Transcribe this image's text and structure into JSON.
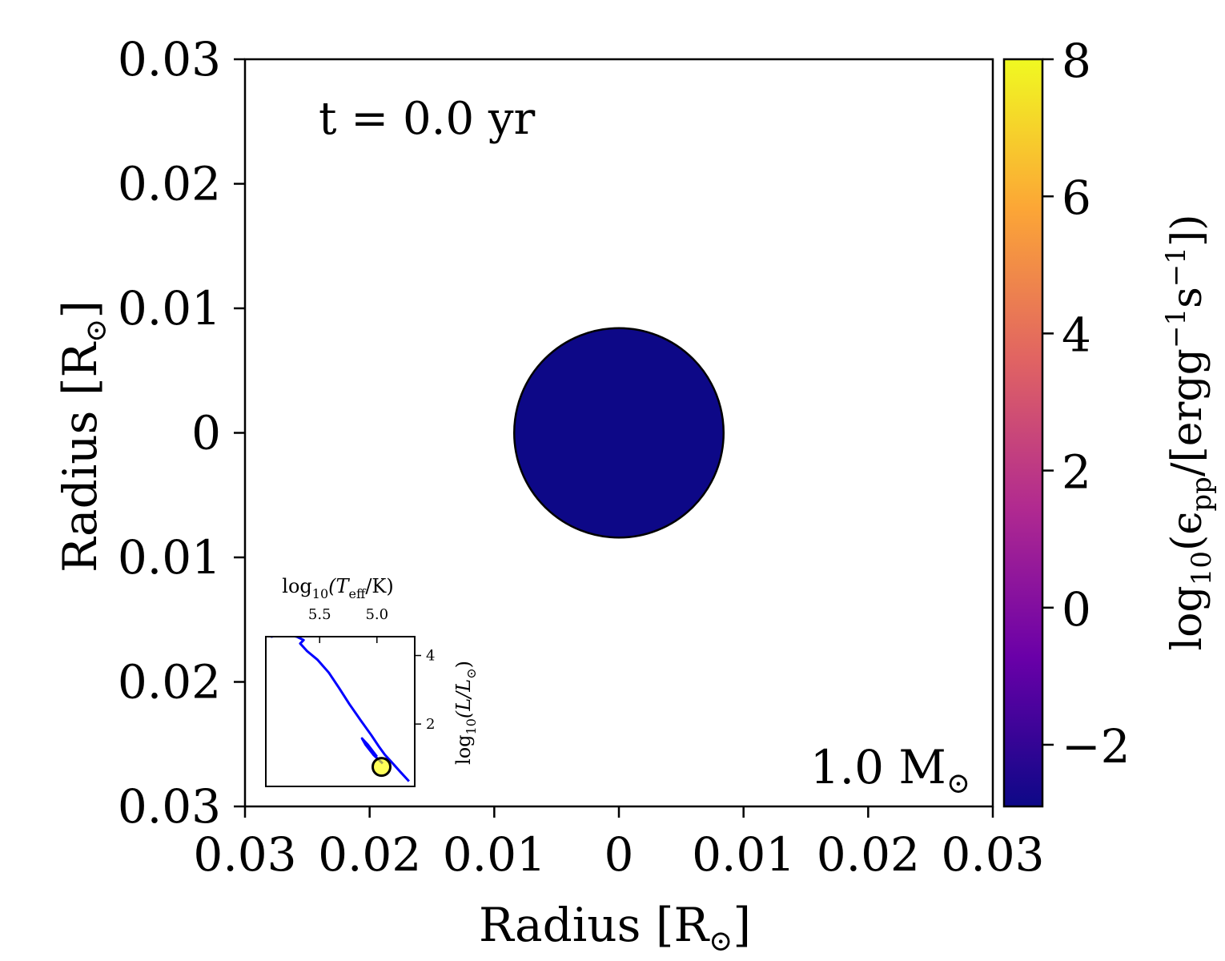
{
  "chart_data": [
    {
      "type": "scatter",
      "description_free": true,
      "xlabel": "Radius [R",
      "xlabel_sub": "⊙",
      "xlabel_end": "]",
      "ylabel": "Radius [R",
      "ylabel_sub": "⊙",
      "ylabel_end": "]",
      "xlim": [
        -0.03,
        0.03
      ],
      "ylim": [
        -0.03,
        0.03
      ],
      "x_ticks": [
        -0.03,
        -0.02,
        -0.01,
        0,
        0.01,
        0.02,
        0.03
      ],
      "x_tick_labels": [
        "0.03",
        "0.02",
        "0.01",
        "0",
        "0.01",
        "0.02",
        "0.03"
      ],
      "y_ticks": [
        0.03,
        0.02,
        0.01,
        0,
        -0.01,
        -0.02,
        -0.03
      ],
      "y_tick_labels": [
        "0.03",
        "0.02",
        "0.01",
        "0",
        "0.01",
        "0.02",
        "0.03"
      ],
      "time_label": "t = 0.0 yr",
      "mass_label": "1.0 M",
      "mass_sub": "⊙",
      "star": {
        "center": [
          0,
          0
        ],
        "radius": 0.0084,
        "color": "#0d0887",
        "log_eps_pp": -2.9
      },
      "colorbar": {
        "colormap": "plasma",
        "range": [
          -2.9,
          8
        ],
        "ticks": [
          8,
          6,
          4,
          2,
          0,
          -2
        ],
        "tick_labels": [
          "8",
          "6",
          "4",
          "2",
          "0",
          "−2"
        ],
        "label_main": "log",
        "label_sub": "10",
        "label_rest": "(ϵ",
        "label_rest_sub": "pp",
        "label_unit": "/[ergg",
        "label_unit_sup1": "−1",
        "label_unit_s": "s",
        "label_unit_sup2": "−1",
        "label_end": "])",
        "stops": [
          "#0d0887",
          "#6a00a8",
          "#b12a90",
          "#e16462",
          "#fca636",
          "#f0f921"
        ]
      }
    },
    {
      "type": "line",
      "inset": true,
      "xlabel": "log",
      "xlabel_sub": "10",
      "xlabel_rest": "(T",
      "xlabel_rest_sub": "eff",
      "xlabel_end": "/K)",
      "ylabel": "log",
      "ylabel_sub": "10",
      "ylabel_rest": "(L/L",
      "ylabel_rest_sub": "⊙",
      "ylabel_end": ")",
      "xlim": [
        5.97,
        4.67
      ],
      "ylim": [
        0.18,
        4.55
      ],
      "x_ticks": [
        5.5,
        5.0
      ],
      "x_tick_labels": [
        "5.5",
        "5.0"
      ],
      "y_ticks": [
        4,
        2
      ],
      "y_tick_labels": [
        "4",
        "2"
      ],
      "line_color": "#0000ff",
      "track": [
        {
          "logT": 4.72,
          "logL": 0.33
        },
        {
          "logT": 4.8,
          "logL": 0.62
        },
        {
          "logT": 4.88,
          "logL": 0.92
        },
        {
          "logT": 4.93,
          "logL": 1.1
        },
        {
          "logT": 4.98,
          "logL": 1.33
        },
        {
          "logT": 5.05,
          "logL": 1.68
        },
        {
          "logT": 5.14,
          "logL": 2.1
        },
        {
          "logT": 5.24,
          "logL": 2.58
        },
        {
          "logT": 5.33,
          "logL": 3.05
        },
        {
          "logT": 5.42,
          "logL": 3.5
        },
        {
          "logT": 5.52,
          "logL": 3.88
        },
        {
          "logT": 5.61,
          "logL": 4.13
        },
        {
          "logT": 5.67,
          "logL": 4.35
        },
        {
          "logT": 5.64,
          "logL": 4.45
        },
        {
          "logT": 5.7,
          "logL": 4.55
        },
        {
          "logT": 5.78,
          "logL": 4.6
        },
        {
          "logT": 5.86,
          "logL": 4.6
        },
        {
          "logT": 5.92,
          "logL": 4.55
        },
        {
          "logT": 5.88,
          "logL": 4.62
        },
        {
          "logT": 5.7,
          "logL": 4.63
        },
        {
          "logT": 5.45,
          "logL": 4.62
        },
        {
          "logT": 5.2,
          "logL": 4.61
        },
        {
          "logT": 4.98,
          "logL": 4.64
        },
        {
          "logT": 4.86,
          "logL": 4.64
        },
        {
          "logT": 4.84,
          "logL": 4.58
        }
      ],
      "track2": [
        {
          "logT": 4.95,
          "logL": 0.85
        },
        {
          "logT": 5.03,
          "logL": 1.1
        },
        {
          "logT": 5.1,
          "logL": 1.4
        },
        {
          "logT": 5.13,
          "logL": 1.58
        },
        {
          "logT": 5.08,
          "logL": 1.4
        },
        {
          "logT": 5.0,
          "logL": 1.05
        }
      ],
      "current_point": {
        "logT": 4.96,
        "logL": 0.75,
        "color": "#ffff00"
      }
    }
  ]
}
